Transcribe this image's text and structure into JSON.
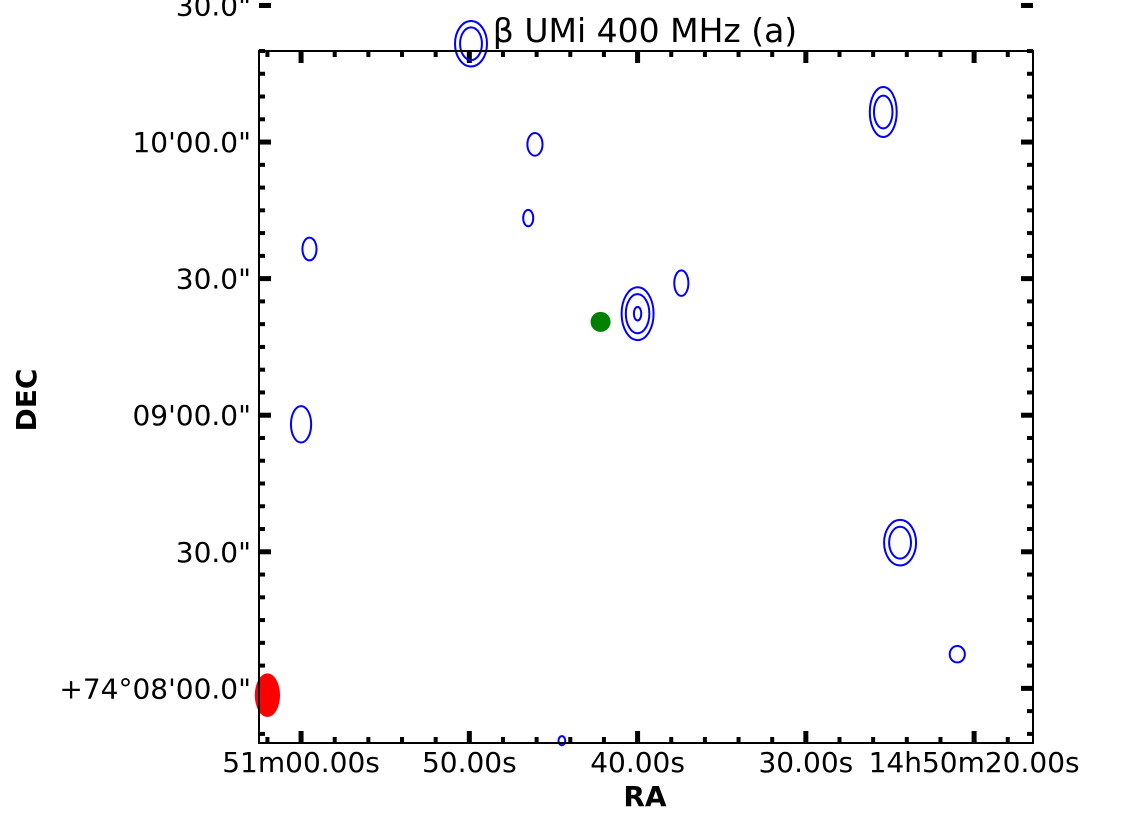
{
  "chart_data": {
    "type": "contour",
    "title": "β UMi 400 MHz (a)",
    "xlabel": "RA",
    "ylabel": "DEC",
    "x_unit": "seconds of RA offset relative to 14h50m00s",
    "y_unit": "arcsec offset relative to +74°08'00.0\"",
    "xlim": [
      62.5,
      16.5
    ],
    "ylim": [
      -12,
      140
    ],
    "x_ticks": [
      {
        "value": 60,
        "label": "51m00.00s"
      },
      {
        "value": 50,
        "label": "50.00s"
      },
      {
        "value": 40,
        "label": "40.00s"
      },
      {
        "value": 30,
        "label": "30.00s"
      },
      {
        "value": 20,
        "label": "14h50m20.00s"
      }
    ],
    "y_ticks": [
      {
        "value": 0,
        "label": "+74°08'00.0\""
      },
      {
        "value": 30,
        "label": "30.0\""
      },
      {
        "value": 60,
        "label": "09'00.0\""
      },
      {
        "value": 90,
        "label": "30.0\""
      },
      {
        "value": 120,
        "label": "10'00.0\""
      },
      {
        "value": 150,
        "label": "30.0\""
      }
    ],
    "contour_color": "#0000ff",
    "contours": [
      {
        "x": 49.9,
        "y": 141.6,
        "rings": [
          [
            0.95,
            5.0
          ],
          [
            0.65,
            3.6
          ]
        ]
      },
      {
        "x": 46.1,
        "y": 119.5,
        "rings": [
          [
            0.45,
            2.5
          ]
        ]
      },
      {
        "x": 46.5,
        "y": 103.3,
        "rings": [
          [
            0.3,
            1.8
          ]
        ]
      },
      {
        "x": 59.5,
        "y": 96.5,
        "rings": [
          [
            0.42,
            2.5
          ]
        ]
      },
      {
        "x": 40.0,
        "y": 82.3,
        "rings": [
          [
            0.95,
            5.8
          ],
          [
            0.7,
            4.3
          ],
          [
            0.22,
            1.5
          ]
        ]
      },
      {
        "x": 37.4,
        "y": 89.0,
        "rings": [
          [
            0.42,
            2.8
          ]
        ]
      },
      {
        "x": 25.4,
        "y": 126.6,
        "rings": [
          [
            0.8,
            5.5
          ],
          [
            0.55,
            3.6
          ]
        ]
      },
      {
        "x": 60.0,
        "y": 58.0,
        "rings": [
          [
            0.6,
            4.0
          ]
        ]
      },
      {
        "x": 24.4,
        "y": 32.0,
        "rings": [
          [
            0.95,
            5.0
          ],
          [
            0.65,
            3.5
          ]
        ]
      },
      {
        "x": 21.0,
        "y": 7.5,
        "rings": [
          [
            0.45,
            1.8
          ]
        ]
      },
      {
        "x": 44.5,
        "y": -11.5,
        "rings": [
          [
            0.2,
            1.0
          ]
        ]
      }
    ],
    "marker": {
      "x": 42.2,
      "y": 80.5,
      "color": "#008000"
    },
    "beam": {
      "x": 62.0,
      "y": -1.5,
      "rx": 0.75,
      "ry": 4.8,
      "color": "#ff0000"
    },
    "grid": false
  }
}
